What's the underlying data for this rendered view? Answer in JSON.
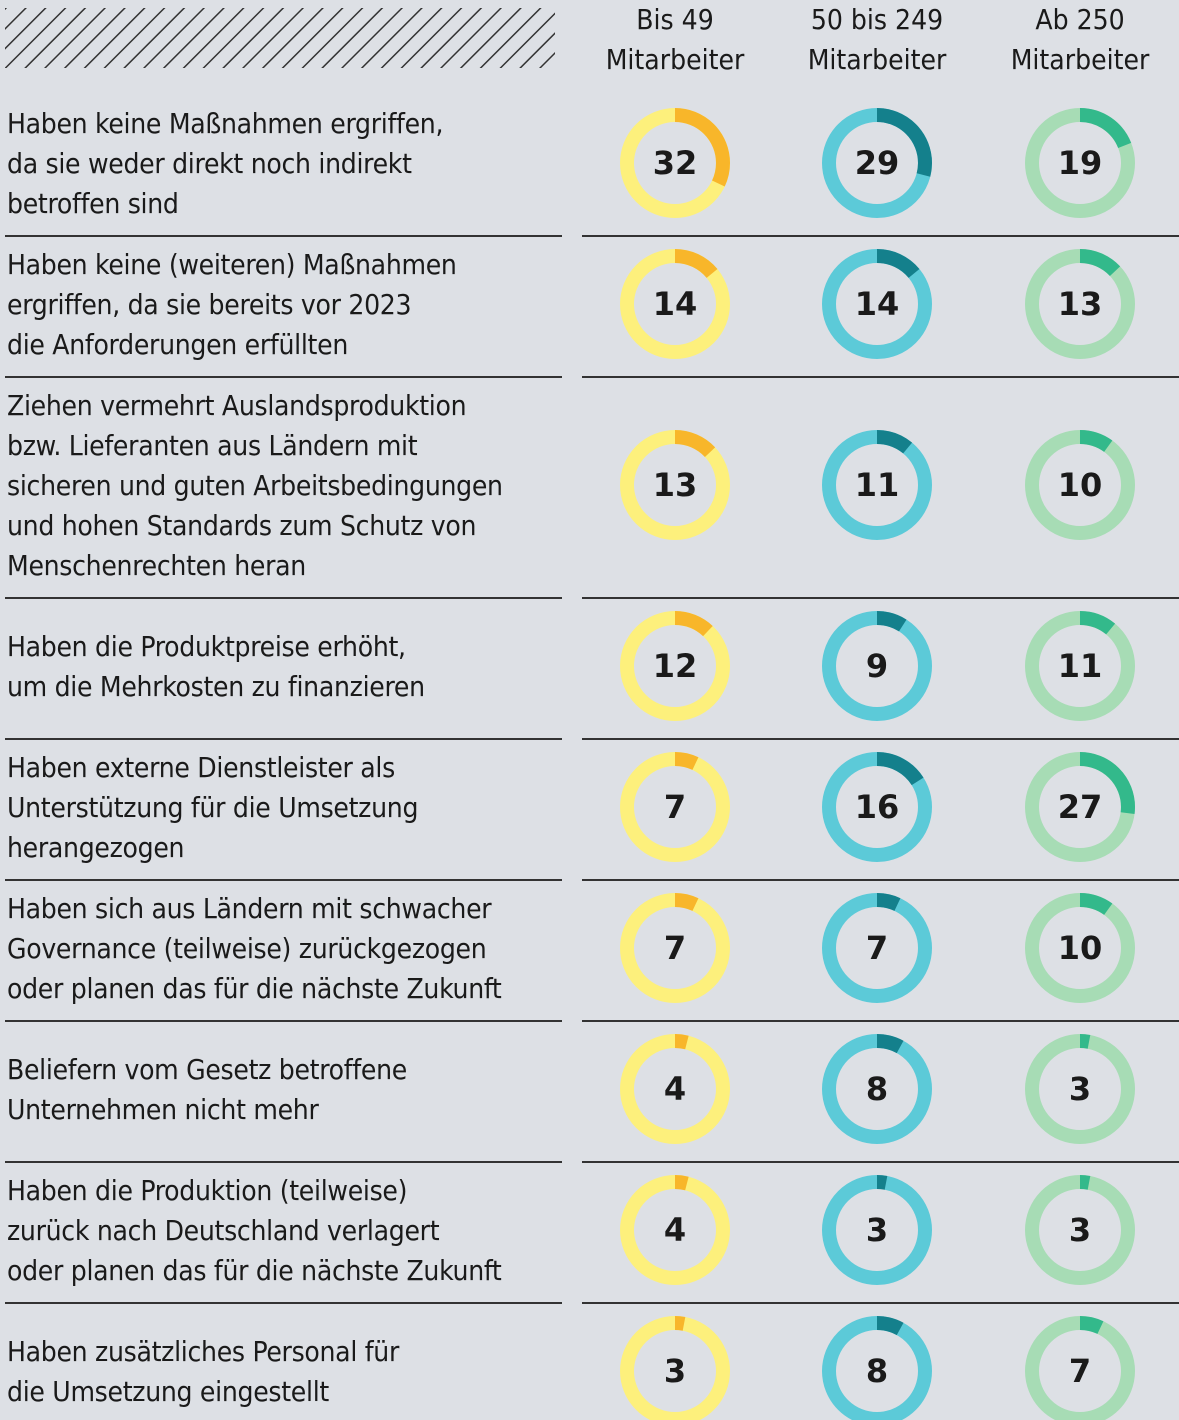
{
  "chart_data": {
    "type": "donut-grid",
    "ylim": [
      0,
      100
    ],
    "categories": [
      "Haben keine Maßnahmen ergriffen,\nda sie weder direkt noch indirekt\nbetroffen sind",
      "Haben keine (weiteren) Maßnahmen\nergriffen, da sie bereits vor 2023\ndie Anforderungen erfüllten",
      "Ziehen vermehrt Auslandsproduktion\nbzw. Lieferanten aus Ländern mit\nsicheren und guten Arbeitsbedingungen\nund hohen Standards zum Schutz von\nMenschenrechten heran",
      "Haben die Produktpreise erhöht,\num die Mehrkosten zu finanzieren",
      "Haben externe Dienstleister als\nUnterstützung für die Umsetzung\nherangezogen",
      "Haben sich aus Ländern mit schwacher\nGovernance (teilweise) zurückgezogen\noder planen das für die nächste Zukunft",
      "Beliefern vom Gesetz betroffene\nUnternehmen nicht mehr",
      "Haben die Produktion (teilweise)\nzurück nach Deutschland verlagert\noder planen das für die nächste Zukunft",
      "Haben zusätzliches Personal für\ndie Umsetzung eingestellt"
    ],
    "series": [
      {
        "name": "Bis 49\nMitarbeiter",
        "color": "#f8b62a",
        "track_color": "#fdf07c",
        "values": [
          32,
          14,
          13,
          12,
          7,
          7,
          4,
          4,
          3
        ]
      },
      {
        "name": "50 bis 249\nMitarbeiter",
        "color": "#14808c",
        "track_color": "#5ccad8",
        "values": [
          29,
          14,
          11,
          9,
          16,
          7,
          8,
          3,
          8
        ]
      },
      {
        "name": "Ab 250\nMitarbeiter",
        "color": "#33b98b",
        "track_color": "#a7dcb5",
        "values": [
          19,
          13,
          10,
          11,
          27,
          10,
          3,
          3,
          7
        ]
      }
    ]
  }
}
